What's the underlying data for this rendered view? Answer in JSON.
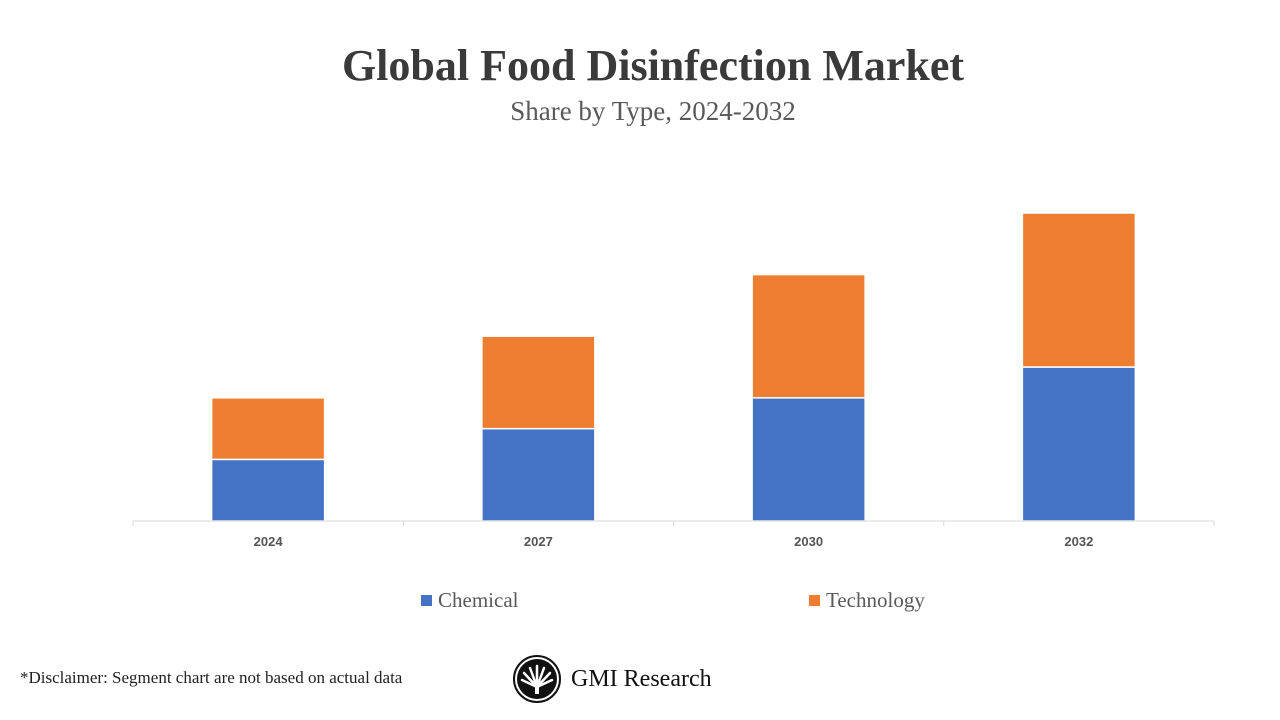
{
  "chart_data": {
    "type": "bar",
    "stacked": true,
    "title": "Global Food Disinfection Market",
    "subtitle": "Share by Type, 2024-2032",
    "categories": [
      "2024",
      "2027",
      "2030",
      "2032"
    ],
    "series": [
      {
        "name": "Chemical",
        "color": "#4472C4",
        "values": [
          2,
          3,
          4,
          5
        ]
      },
      {
        "name": "Technology",
        "color": "#ED7D31",
        "values": [
          2,
          3,
          4,
          5
        ]
      }
    ],
    "ylim": [
      0,
      10
    ],
    "grid": false,
    "legend": "bottom"
  },
  "footer": {
    "disclaimer": "*Disclaimer:  Segment chart are not based on actual data",
    "brand": "GMI Research"
  }
}
